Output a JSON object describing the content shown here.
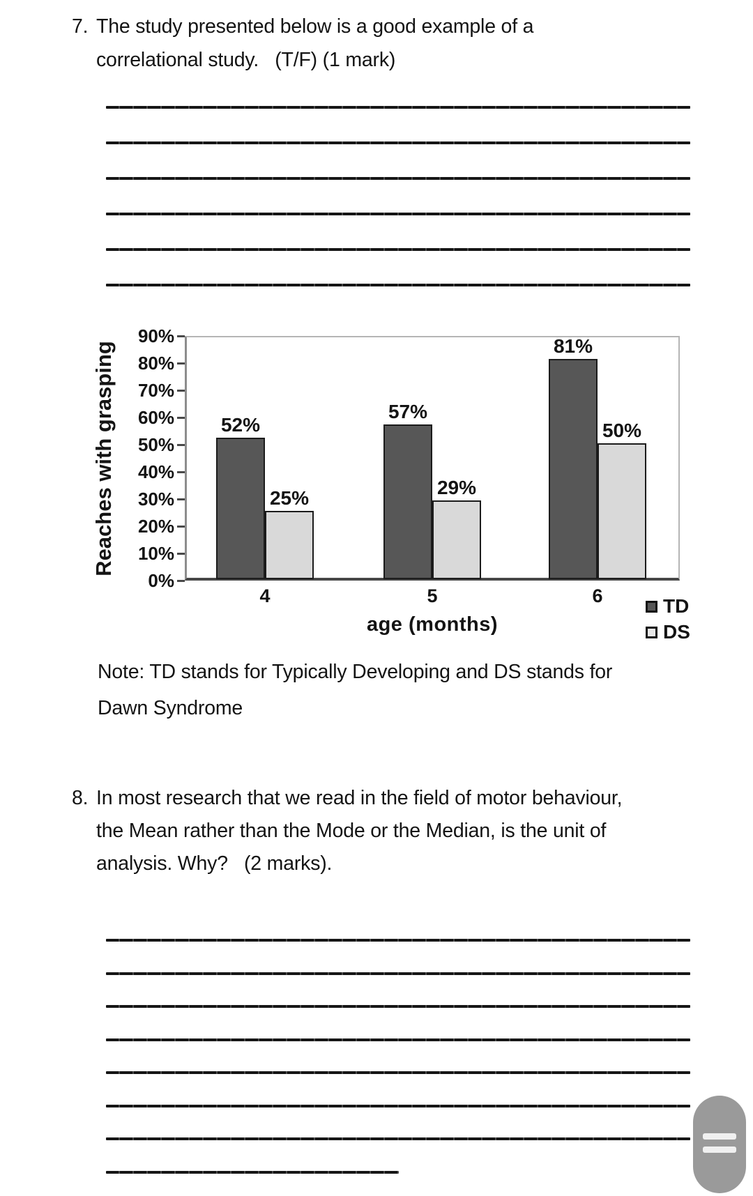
{
  "page": {
    "question_7": {
      "number": "7.",
      "lines": [
        "The study presented below is a good example of a",
        "correlational study.   (T/F) (1 mark)"
      ]
    },
    "question_8": {
      "number": "8.",
      "lines": [
        "In most research that we read in the field of motor behaviour,",
        "the Mean rather than the Mode or the Median, is the unit of",
        "analysis. Why?   (2 marks)."
      ]
    },
    "note_lines": [
      "Note: TD stands for Typically Developing and DS stands for",
      "Dawn Syndrome"
    ],
    "answer_blocks": [
      {
        "full_lines": 6,
        "short_lines": 0
      },
      {
        "full_lines": 7,
        "short_lines": 1
      }
    ]
  },
  "chart_data": {
    "type": "bar",
    "title": "",
    "xlabel": "age (months)",
    "ylabel": "Reaches with grasping",
    "categories": [
      "4",
      "5",
      "6"
    ],
    "series": [
      {
        "name": "TD",
        "values": [
          52,
          57,
          81
        ],
        "color": "#575757"
      },
      {
        "name": "DS",
        "values": [
          25,
          29,
          50
        ],
        "color": "#d9d9d9"
      }
    ],
    "data_labels": [
      [
        "52%",
        "57%",
        "81%"
      ],
      [
        "25%",
        "29%",
        "50%"
      ]
    ],
    "y_ticks": [
      "90%",
      "80%",
      "70%",
      "60%",
      "50%",
      "40%",
      "30%",
      "20%",
      "10%",
      "0%"
    ],
    "ylim": [
      0,
      90
    ],
    "grid": false,
    "legend_position": "bottom-right"
  },
  "icons": {
    "scroll_handle": "drag-handle-pill"
  },
  "colors": {
    "bar_td": "#575757",
    "bar_ds": "#d9d9d9",
    "bar_border": "#1b1b1b",
    "plot_frame": "#b5b5b5",
    "axis": "#474747",
    "text": "#141414",
    "scroll_handle": "#9a9a9a",
    "scroll_handle_bars": "#f0f0f0"
  }
}
